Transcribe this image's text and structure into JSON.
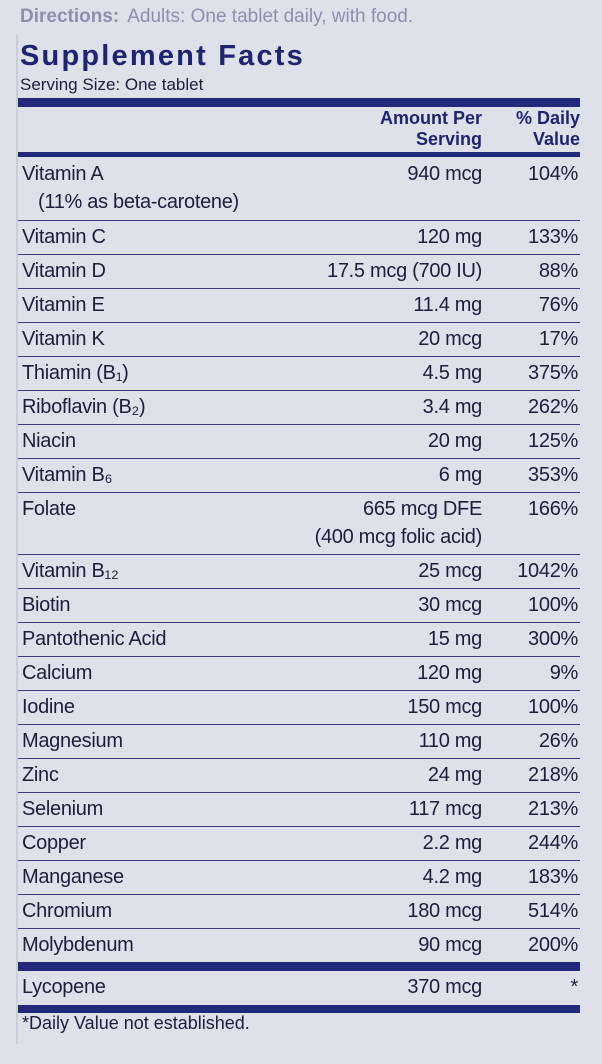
{
  "directions": {
    "label": "Directions:",
    "text": "Adults:  One tablet daily, with food."
  },
  "title": "Supplement Facts",
  "serving_size": "Serving Size: One tablet",
  "header": {
    "amount": [
      "Amount Per",
      "Serving"
    ],
    "daily_value": [
      "% Daily",
      "Value"
    ]
  },
  "rows": [
    {
      "name": [
        "Vitamin A",
        "(11% as beta-carotene)"
      ],
      "amount": [
        "940 mcg"
      ],
      "daily_value": "104%"
    },
    {
      "name": [
        "Vitamin C"
      ],
      "amount": [
        "120 mg"
      ],
      "daily_value": "133%"
    },
    {
      "name": [
        "Vitamin D"
      ],
      "amount": [
        "17.5 mcg (700 IU)"
      ],
      "daily_value": "88%"
    },
    {
      "name": [
        "Vitamin E"
      ],
      "amount": [
        "11.4 mg"
      ],
      "daily_value": "76%"
    },
    {
      "name": [
        "Vitamin K"
      ],
      "amount": [
        "20 mcg"
      ],
      "daily_value": "17%"
    },
    {
      "name": [
        "Thiamin (B₁)"
      ],
      "amount": [
        "4.5 mg"
      ],
      "daily_value": "375%"
    },
    {
      "name": [
        "Riboflavin (B₂)"
      ],
      "amount": [
        "3.4 mg"
      ],
      "daily_value": "262%"
    },
    {
      "name": [
        "Niacin"
      ],
      "amount": [
        "20 mg"
      ],
      "daily_value": "125%"
    },
    {
      "name": [
        "Vitamin B₆"
      ],
      "amount": [
        "6 mg"
      ],
      "daily_value": "353%"
    },
    {
      "name": [
        "Folate"
      ],
      "amount": [
        "665 mcg DFE",
        "(400 mcg folic acid)"
      ],
      "daily_value": "166%"
    },
    {
      "name": [
        "Vitamin B₁₂"
      ],
      "amount": [
        "25 mcg"
      ],
      "daily_value": "1042%"
    },
    {
      "name": [
        "Biotin"
      ],
      "amount": [
        "30 mcg"
      ],
      "daily_value": "100%"
    },
    {
      "name": [
        "Pantothenic Acid"
      ],
      "amount": [
        "15 mg"
      ],
      "daily_value": "300%"
    },
    {
      "name": [
        "Calcium"
      ],
      "amount": [
        "120 mg"
      ],
      "daily_value": "9%"
    },
    {
      "name": [
        "Iodine"
      ],
      "amount": [
        "150 mcg"
      ],
      "daily_value": "100%"
    },
    {
      "name": [
        "Magnesium"
      ],
      "amount": [
        "110 mg"
      ],
      "daily_value": "26%"
    },
    {
      "name": [
        "Zinc"
      ],
      "amount": [
        "24 mg"
      ],
      "daily_value": "218%"
    },
    {
      "name": [
        "Selenium"
      ],
      "amount": [
        "117 mcg"
      ],
      "daily_value": "213%"
    },
    {
      "name": [
        "Copper"
      ],
      "amount": [
        "2.2 mg"
      ],
      "daily_value": "244%"
    },
    {
      "name": [
        "Manganese"
      ],
      "amount": [
        "4.2 mg"
      ],
      "daily_value": "183%"
    },
    {
      "name": [
        "Chromium"
      ],
      "amount": [
        "180 mcg"
      ],
      "daily_value": "514%"
    },
    {
      "name": [
        "Molybdenum"
      ],
      "amount": [
        "90 mcg"
      ],
      "daily_value": "200%"
    }
  ],
  "other_rows": [
    {
      "name": [
        "Lycopene"
      ],
      "amount": [
        "370 mcg"
      ],
      "daily_value": "*"
    }
  ],
  "footnote": "*Daily Value not established."
}
